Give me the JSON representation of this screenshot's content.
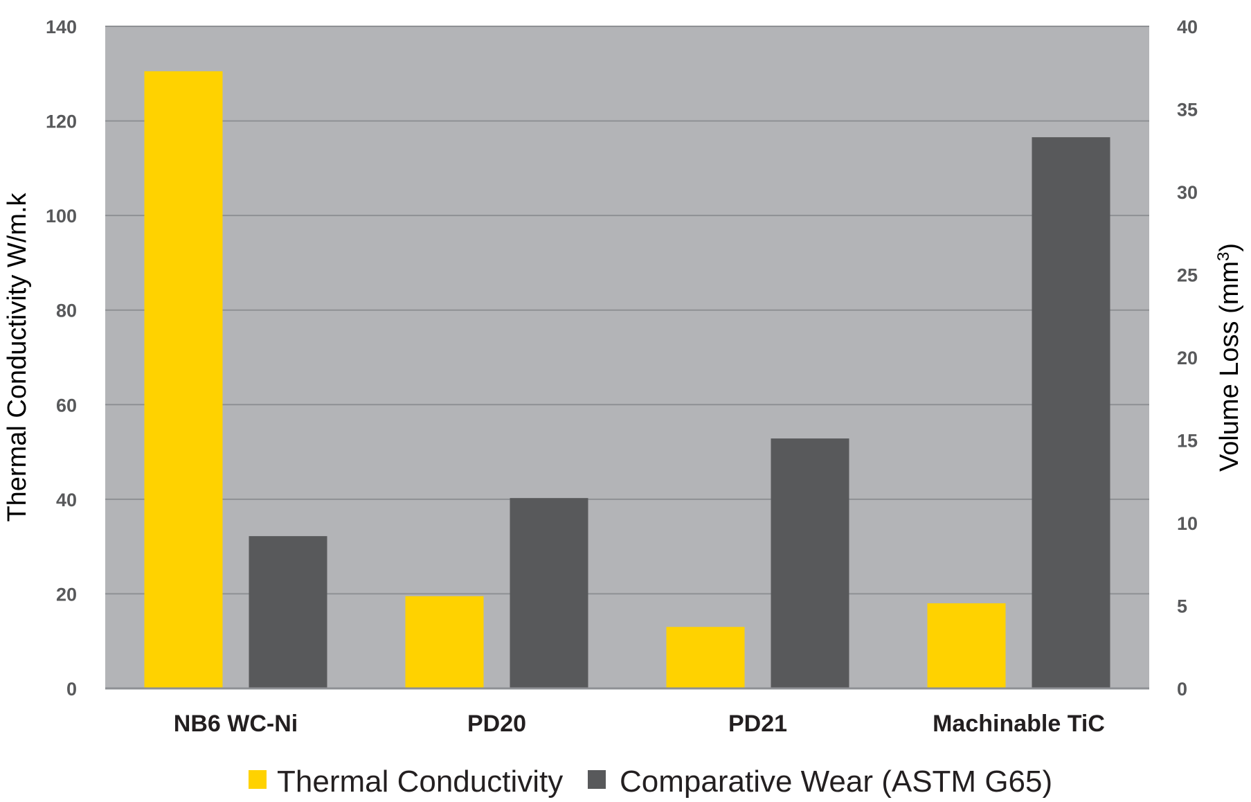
{
  "chart_data": {
    "type": "bar",
    "categories": [
      "NB6 WC-Ni",
      "PD20",
      "PD21",
      "Machinable TiC"
    ],
    "series": [
      {
        "name": "Thermal Conductivity",
        "axis": "left",
        "color": "#ffd200",
        "values": [
          130.5,
          19.5,
          13,
          18
        ]
      },
      {
        "name": "Comparative Wear (ASTM G65)",
        "axis": "right",
        "color": "#58595b",
        "values": [
          9.2,
          11.5,
          15.1,
          33.3
        ]
      }
    ],
    "y_left": {
      "label": "Thermal Conductivity W/m.k",
      "ylim": [
        0,
        140
      ],
      "ticks": [
        0,
        20,
        40,
        60,
        80,
        100,
        120,
        140
      ]
    },
    "y_right": {
      "label": "Volume Loss (mm",
      "label_superscript": "3",
      "label_suffix": ")",
      "ylim": [
        0,
        40
      ],
      "ticks": [
        0,
        5,
        10,
        15,
        20,
        25,
        30,
        35,
        40
      ]
    },
    "grid": true,
    "legend": "bottom",
    "colors": {
      "plot_background": "#b3b4b7",
      "gridline": "#8e9094"
    }
  }
}
